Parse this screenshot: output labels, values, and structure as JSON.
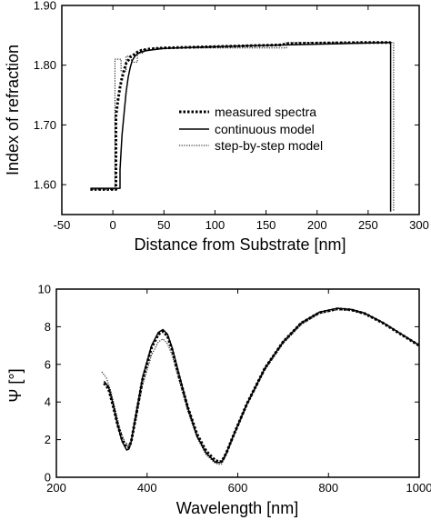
{
  "chart_data": [
    {
      "type": "line",
      "xlabel": "Distance from Substrate [nm]",
      "ylabel": "Index of refraction",
      "xlim": [
        -50,
        300
      ],
      "ylim": [
        1.55,
        1.9
      ],
      "xticks": [
        "-50",
        "0",
        "50",
        "100",
        "150",
        "200",
        "250",
        "300"
      ],
      "yticks": [
        "1.60",
        "1.70",
        "1.80",
        "1.90"
      ],
      "grid": false,
      "legend_position": "center-right",
      "series": [
        {
          "name": "measured spectra",
          "style": "thick-dotted",
          "x": [
            -22,
            3,
            3,
            5,
            7,
            9,
            11,
            13,
            15,
            17,
            19,
            21,
            24,
            28,
            35,
            50,
            100,
            165,
            170,
            200,
            250,
            272
          ],
          "y": [
            1.592,
            1.592,
            1.715,
            1.742,
            1.763,
            1.779,
            1.792,
            1.803,
            1.808,
            1.814,
            1.816,
            1.818,
            1.822,
            1.825,
            1.827,
            1.829,
            1.831,
            1.834,
            1.836,
            1.837,
            1.838,
            1.838
          ]
        },
        {
          "name": "continuous model",
          "style": "solid",
          "x": [
            -22,
            7,
            7,
            9,
            11,
            13,
            15,
            17,
            19,
            22,
            26,
            32,
            40,
            50,
            80,
            120,
            170,
            220,
            272,
            272
          ],
          "y": [
            1.594,
            1.594,
            1.625,
            1.683,
            1.72,
            1.755,
            1.78,
            1.796,
            1.808,
            1.816,
            1.821,
            1.824,
            1.826,
            1.828,
            1.83,
            1.832,
            1.834,
            1.836,
            1.838,
            1.555
          ]
        },
        {
          "name": "step-by-step model",
          "style": "thin-dotted",
          "x": [
            -22,
            2,
            2,
            8,
            8,
            13,
            13,
            18,
            18,
            24,
            24,
            30,
            30,
            40,
            40,
            170,
            170,
            275,
            275
          ],
          "y": [
            1.592,
            1.592,
            1.81,
            1.81,
            1.79,
            1.79,
            1.815,
            1.815,
            1.805,
            1.805,
            1.82,
            1.82,
            1.826,
            1.826,
            1.829,
            1.829,
            1.838,
            1.838,
            1.555
          ]
        }
      ]
    },
    {
      "type": "line",
      "xlabel": "Wavelength [nm]",
      "ylabel": "Ψ [°]",
      "xlim": [
        200,
        1000
      ],
      "ylim": [
        0,
        10
      ],
      "xticks": [
        "200",
        "400",
        "600",
        "800",
        "1000"
      ],
      "yticks": [
        "0",
        "2",
        "4",
        "6",
        "8",
        "10"
      ],
      "grid": false,
      "series": [
        {
          "style": "thick-dotted",
          "x": [
            305,
            315,
            325,
            335,
            345,
            355,
            360,
            365,
            375,
            390,
            410,
            425,
            435,
            445,
            455,
            470,
            490,
            510,
            530,
            550,
            560,
            565,
            575,
            590,
            620,
            660,
            700,
            740,
            780,
            820,
            850,
            880,
            920,
            960,
            1000
          ],
          "y": [
            5.0,
            4.7,
            3.8,
            2.8,
            2.0,
            1.6,
            1.6,
            1.9,
            3.2,
            5.2,
            6.9,
            7.6,
            7.75,
            7.5,
            6.8,
            5.4,
            3.7,
            2.3,
            1.4,
            0.9,
            0.82,
            0.85,
            1.3,
            2.2,
            3.9,
            5.8,
            7.2,
            8.2,
            8.75,
            8.95,
            8.9,
            8.7,
            8.2,
            7.6,
            7.0
          ]
        },
        {
          "style": "solid",
          "x": [
            305,
            315,
            325,
            335,
            345,
            355,
            360,
            365,
            375,
            390,
            410,
            425,
            435,
            445,
            455,
            470,
            490,
            510,
            530,
            550,
            560,
            565,
            575,
            590,
            620,
            660,
            700,
            740,
            780,
            820,
            850,
            880,
            920,
            960,
            1000
          ],
          "y": [
            5.1,
            4.8,
            3.9,
            2.8,
            1.9,
            1.45,
            1.5,
            1.9,
            3.3,
            5.3,
            7.0,
            7.7,
            7.85,
            7.6,
            6.9,
            5.5,
            3.7,
            2.2,
            1.3,
            0.8,
            0.78,
            0.82,
            1.3,
            2.2,
            3.9,
            5.8,
            7.2,
            8.2,
            8.78,
            8.98,
            8.92,
            8.72,
            8.22,
            7.62,
            7.02
          ]
        },
        {
          "style": "thin-dotted",
          "x": [
            300,
            310,
            320,
            330,
            340,
            350,
            360,
            365,
            375,
            390,
            410,
            425,
            435,
            445,
            455,
            470,
            490,
            510,
            530,
            550,
            560,
            565,
            575,
            590,
            620,
            660,
            700,
            740,
            780,
            820,
            850,
            880,
            920,
            960,
            1000
          ],
          "y": [
            5.6,
            5.3,
            4.6,
            3.6,
            2.6,
            1.9,
            1.7,
            1.9,
            3.0,
            4.9,
            6.5,
            7.2,
            7.35,
            7.1,
            6.5,
            5.2,
            3.5,
            2.1,
            1.2,
            0.75,
            0.68,
            0.72,
            1.2,
            2.1,
            3.8,
            5.7,
            7.1,
            8.1,
            8.7,
            8.9,
            8.87,
            8.68,
            8.2,
            7.6,
            7.0
          ]
        }
      ]
    }
  ]
}
